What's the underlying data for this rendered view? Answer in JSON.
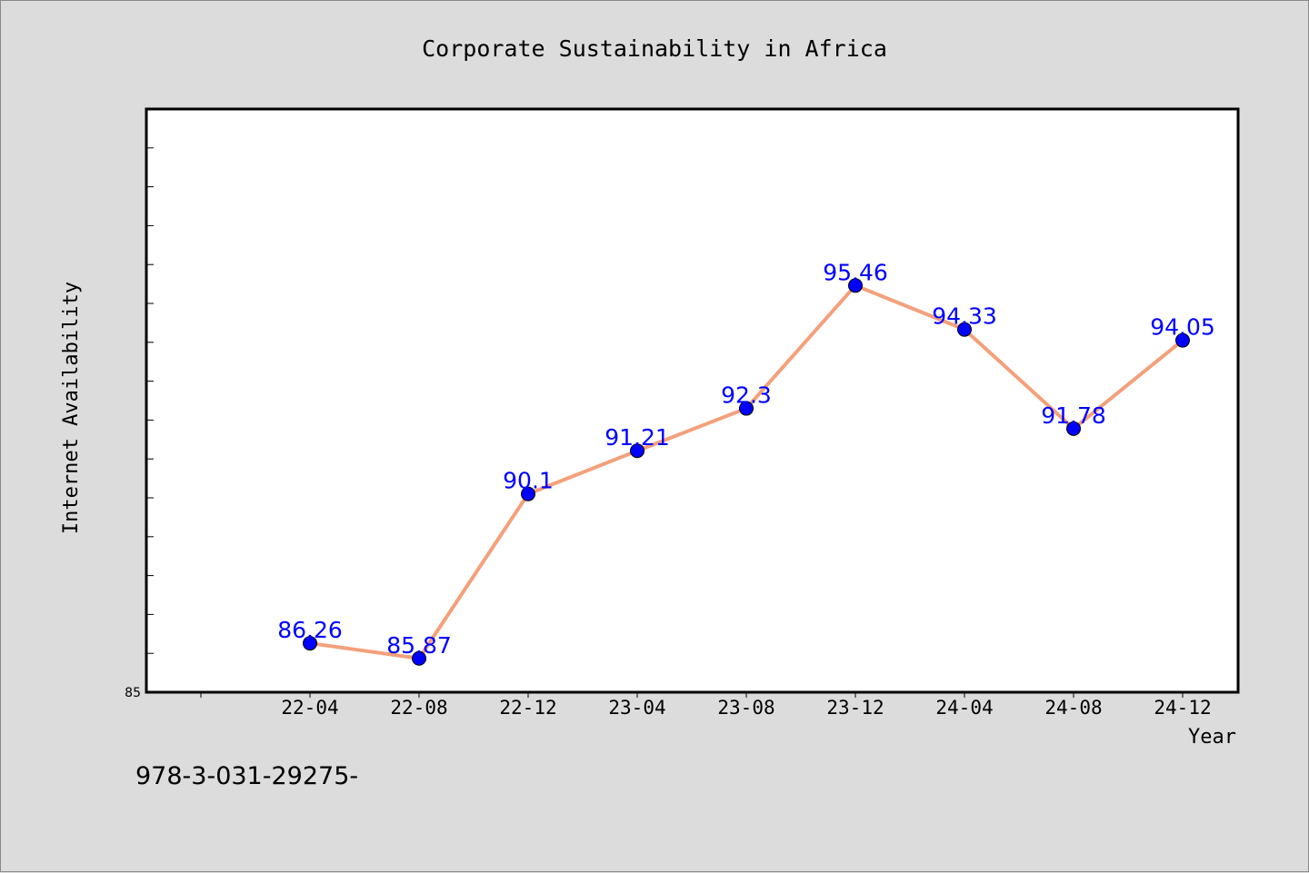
{
  "chart_data": {
    "type": "line",
    "title": "Corporate Sustainability in Africa",
    "xlabel": "Year",
    "ylabel": "Internet Availability",
    "categories": [
      "22-04",
      "22-08",
      "22-12",
      "23-04",
      "23-08",
      "23-12",
      "24-04",
      "24-08",
      "24-12"
    ],
    "series": [
      {
        "values": [
          86.26,
          85.87,
          90.1,
          91.21,
          92.3,
          95.46,
          94.33,
          91.78,
          94.05
        ]
      }
    ],
    "data_labels": [
      "86.26",
      "85.87",
      "90.1",
      "91.21",
      "92.3",
      "95.46",
      "94.33",
      "91.78",
      "94.05"
    ],
    "y_tick_labels": [
      "85"
    ],
    "ylim": [
      85,
      100
    ],
    "grid": false,
    "colors": {
      "line": "#f4a07a",
      "marker": "#0000ff",
      "label": "#0000ff"
    }
  },
  "footer": {
    "isbn": "978-3-031-29275-"
  }
}
